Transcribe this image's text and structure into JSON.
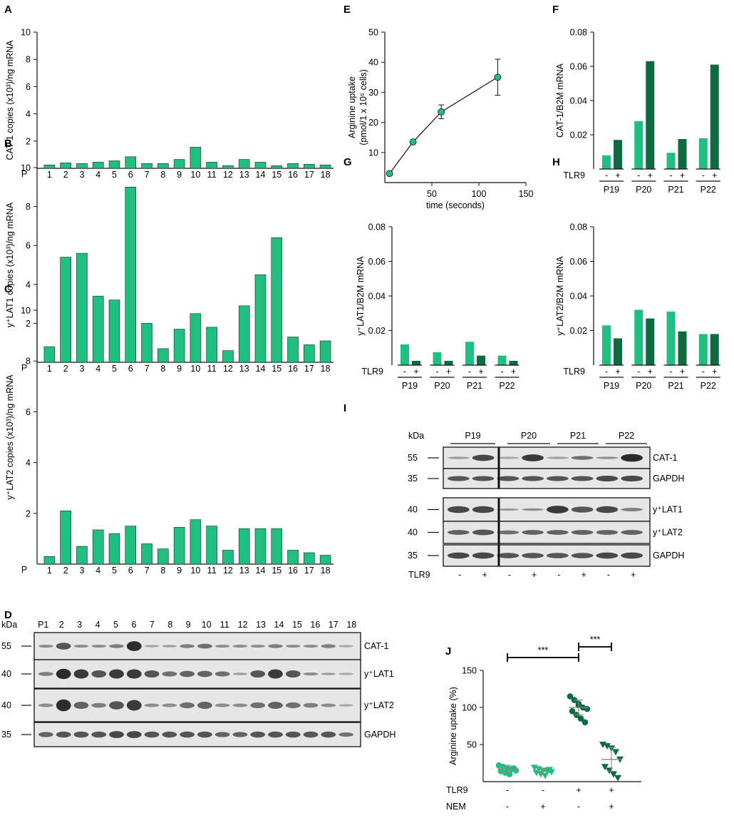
{
  "colors": {
    "light": "#1fc07f",
    "dark": "#0e6b3f",
    "axis": "#111111"
  },
  "chart_data": [
    {
      "panel": "A",
      "type": "bar",
      "ylabel": "CAT-1 copies (x10³)/ng mRNA",
      "xprefix": "P",
      "categories": [
        "1",
        "2",
        "3",
        "4",
        "5",
        "6",
        "7",
        "8",
        "9",
        "10",
        "11",
        "12",
        "13",
        "14",
        "15",
        "16",
        "17",
        "18"
      ],
      "values": [
        0.25,
        0.4,
        0.35,
        0.45,
        0.55,
        0.85,
        0.35,
        0.35,
        0.65,
        1.55,
        0.45,
        0.2,
        0.65,
        0.45,
        0.2,
        0.35,
        0.3,
        0.25
      ],
      "ylim": [
        0,
        10
      ],
      "yticks": [
        "2",
        "4",
        "6",
        "8",
        "10"
      ]
    },
    {
      "panel": "B",
      "type": "bar",
      "ylabel": "y⁺LAT1 copies (x10³)/ng mRNA",
      "xprefix": "P",
      "categories": [
        "1",
        "2",
        "3",
        "4",
        "5",
        "6",
        "7",
        "8",
        "9",
        "10",
        "11",
        "12",
        "13",
        "14",
        "15",
        "16",
        "17",
        "18"
      ],
      "values": [
        0.8,
        5.4,
        5.6,
        3.4,
        3.2,
        9.0,
        2.0,
        0.7,
        1.7,
        2.5,
        1.8,
        0.6,
        2.9,
        4.5,
        6.4,
        1.3,
        0.9,
        1.1
      ],
      "ylim": [
        0,
        10
      ],
      "yticks": [
        "2",
        "4",
        "6",
        "8",
        "10"
      ]
    },
    {
      "panel": "C",
      "type": "bar",
      "ylabel": "y⁺LAT2 copies (x10³)/ng mRNA",
      "xprefix": "P",
      "categories": [
        "1",
        "2",
        "3",
        "4",
        "5",
        "6",
        "7",
        "8",
        "9",
        "10",
        "11",
        "12",
        "13",
        "14",
        "15",
        "16",
        "17",
        "18"
      ],
      "values": [
        0.3,
        2.1,
        0.7,
        1.35,
        1.2,
        1.5,
        0.8,
        0.6,
        1.45,
        1.75,
        1.5,
        0.55,
        1.4,
        1.4,
        1.4,
        0.55,
        0.45,
        0.35
      ],
      "ylim": [
        0,
        10
      ],
      "yticks": [
        "2",
        "4",
        "6",
        "8",
        "10"
      ]
    },
    {
      "panel": "E",
      "type": "line",
      "xlabel": "time (seconds)",
      "ylabel": [
        "Arginine uptake",
        "(pmol/1 x 10⁶ cells)"
      ],
      "x": [
        5,
        30,
        60,
        120
      ],
      "y": [
        3,
        13.5,
        23.5,
        35
      ],
      "err": [
        0,
        0,
        2.3,
        6
      ],
      "xlim": [
        0,
        150
      ],
      "ylim": [
        0,
        50
      ],
      "xticks": [
        "50",
        "100",
        "150"
      ],
      "yticks": [
        "10",
        "20",
        "30",
        "40",
        "50"
      ]
    },
    {
      "panel": "F",
      "type": "bar",
      "ylabel": "CAT-1/B2M mRNA",
      "groups": [
        "P19",
        "P20",
        "P21",
        "P22"
      ],
      "series": [
        {
          "name": "TLR9 -",
          "values": [
            0.008,
            0.028,
            0.0095,
            0.018
          ]
        },
        {
          "name": "TLR9 +",
          "values": [
            0.017,
            0.063,
            0.0175,
            0.061
          ]
        }
      ],
      "ylim": [
        0,
        0.08
      ],
      "yticks": [
        "0.02",
        "0.04",
        "0.06",
        "0.08"
      ],
      "factor": "TLR9",
      "minus": "-",
      "plus": "+"
    },
    {
      "panel": "G",
      "type": "bar",
      "ylabel": "y⁺LAT1/B2M mRNA",
      "groups": [
        "P19",
        "P20",
        "P21",
        "P22"
      ],
      "series": [
        {
          "name": "TLR9 -",
          "values": [
            0.012,
            0.0075,
            0.0135,
            0.0055
          ]
        },
        {
          "name": "TLR9 +",
          "values": [
            0.0025,
            0.0025,
            0.0055,
            0.0025
          ]
        }
      ],
      "ylim": [
        0,
        0.08
      ],
      "yticks": [
        "0.02",
        "0.04",
        "0.06",
        "0.08"
      ],
      "factor": "TLR9",
      "minus": "-",
      "plus": "+"
    },
    {
      "panel": "H",
      "type": "bar",
      "ylabel": "y⁺LAT2/B2M mRNA",
      "groups": [
        "P19",
        "P20",
        "P21",
        "P22"
      ],
      "series": [
        {
          "name": "TLR9 -",
          "values": [
            0.023,
            0.032,
            0.031,
            0.018
          ]
        },
        {
          "name": "TLR9 +",
          "values": [
            0.0155,
            0.027,
            0.0195,
            0.018
          ]
        }
      ],
      "ylim": [
        0,
        0.08
      ],
      "yticks": [
        "0.02",
        "0.04",
        "0.06",
        "0.08"
      ],
      "factor": "TLR9",
      "minus": "-",
      "plus": "+"
    },
    {
      "panel": "J",
      "type": "scatter",
      "ylabel": "Arginine uptake (%)",
      "ylim": [
        0,
        150
      ],
      "yticks": [
        "50",
        "100",
        "150"
      ],
      "rows": [
        {
          "label": "TLR9",
          "values": [
            "-",
            "-",
            "+",
            "+"
          ]
        },
        {
          "label": "NEM",
          "values": [
            "-",
            "+",
            "-",
            "+"
          ]
        }
      ],
      "groups": [
        {
          "points": [
            22,
            20,
            18,
            17,
            15,
            14,
            12,
            10,
            18
          ],
          "mean": 17,
          "sd": 5
        },
        {
          "points": [
            19,
            17,
            15,
            14,
            13,
            12,
            10,
            8,
            16
          ],
          "mean": 14,
          "sd": 4
        },
        {
          "points": [
            115,
            110,
            105,
            100,
            98,
            95,
            90,
            85,
            80,
            103
          ],
          "mean": 100,
          "sd": 10
        },
        {
          "points": [
            50,
            48,
            45,
            40,
            30,
            20,
            15,
            10,
            5
          ],
          "mean": 30,
          "sd": 16
        }
      ],
      "significance": [
        {
          "label": "***",
          "from": 0,
          "to": 2
        },
        {
          "label": "***",
          "from": 2,
          "to": 3
        }
      ]
    }
  ],
  "panels": {
    "A": "A",
    "B": "B",
    "C": "C",
    "D": "D",
    "E": "E",
    "F": "F",
    "G": "G",
    "H": "H",
    "I": "I",
    "J": "J"
  },
  "blot_d": {
    "kda_label": "kDa",
    "lanes": [
      "P1",
      "2",
      "3",
      "4",
      "5",
      "6",
      "7",
      "8",
      "9",
      "10",
      "11",
      "12",
      "13",
      "14",
      "15",
      "16",
      "17",
      "18"
    ],
    "rows": [
      {
        "marker": "55",
        "label": "CAT-1"
      },
      {
        "marker": "40",
        "label": "y⁺LAT1"
      },
      {
        "marker": "40",
        "label": "y⁺LAT2"
      },
      {
        "marker": "35",
        "label": "GAPDH"
      }
    ]
  },
  "blot_i": {
    "kda_label": "kDa",
    "groups": [
      "P19",
      "P20",
      "P21",
      "P22"
    ],
    "rows": [
      {
        "marker": "55",
        "label": "CAT-1"
      },
      {
        "marker": "35",
        "label": "GAPDH"
      },
      {
        "marker": "40",
        "label": "y⁺LAT1"
      },
      {
        "marker": "40",
        "label": "y⁺LAT2"
      },
      {
        "marker": "35",
        "label": "GAPDH"
      }
    ],
    "factor": "TLR9",
    "signs": [
      "-",
      "+",
      "-",
      "+",
      "-",
      "+",
      "-",
      "+"
    ]
  }
}
